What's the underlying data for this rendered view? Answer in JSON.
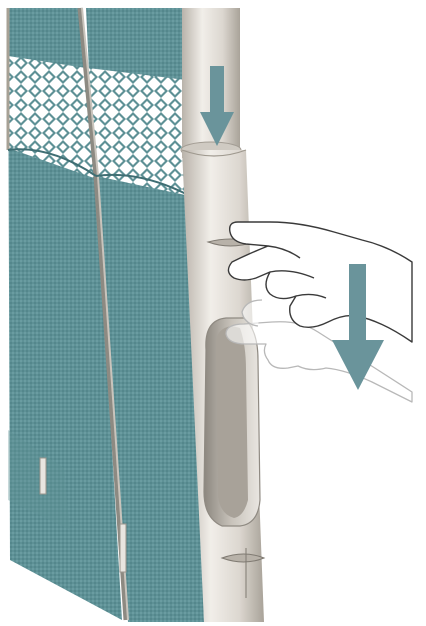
{
  "figure": {
    "kind": "instructional-illustration",
    "printed_text": [],
    "colors": {
      "panel": "#5e9196",
      "panel_dark": "#4a7a80",
      "panel_light": "#7ea9ad",
      "seam": "#a7a195",
      "lattice_bg": "#ffffff",
      "pole": "#d9d5cf",
      "pole_shadow": "#b4aea6",
      "arrow": "#6a949b",
      "hand_outline": "#3a3a3a",
      "ghost_hand_outline": "#b8b8b8"
    },
    "elements": [
      {
        "role": "fabric-screen-panels",
        "count": 2
      },
      {
        "role": "pole",
        "action": "slide-down"
      },
      {
        "role": "hand",
        "action": "pull-down"
      },
      {
        "role": "arrow",
        "direction": "down",
        "count": 2
      }
    ]
  }
}
